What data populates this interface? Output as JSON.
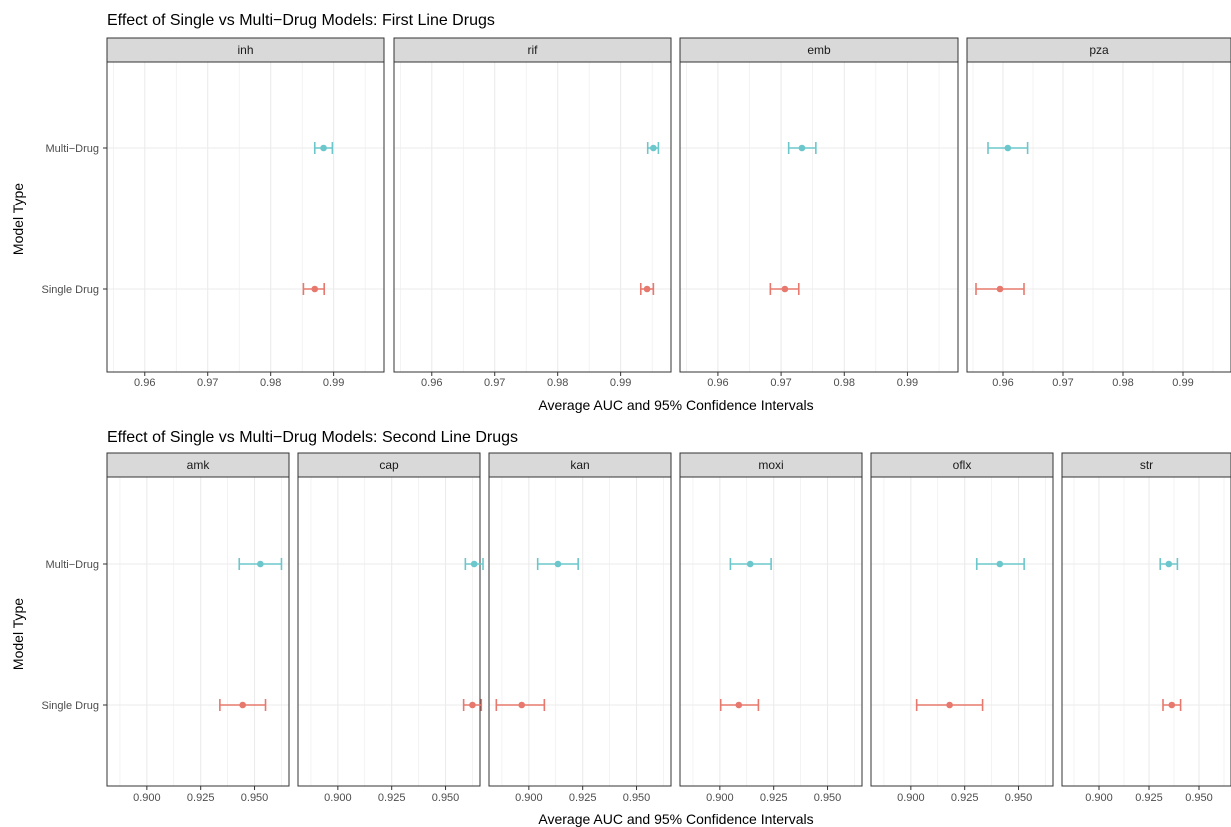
{
  "colors": {
    "multi": "#6cc7cc",
    "single": "#e7786d",
    "strip_bg": "#d9d9d9",
    "grid": "#ebebeb"
  },
  "chart_data": [
    {
      "type": "scatter",
      "subtype": "point-with-error-bars",
      "title": "Effect of Single vs Multi−Drug Models: First Line Drugs",
      "xlabel": "Average AUC and 95% Confidence Intervals",
      "ylabel": "Model Type",
      "y_categories": [
        "Multi−Drug",
        "Single Drug"
      ],
      "xlim": [
        0.954,
        0.998
      ],
      "x_ticks": [
        0.96,
        0.97,
        0.98,
        0.99
      ],
      "x_tick_labels": [
        "0.96",
        "0.97",
        "0.98",
        "0.99"
      ],
      "grid": true,
      "panels": [
        {
          "name": "inh",
          "points": [
            {
              "category": "Multi−Drug",
              "mean": 0.9884,
              "lower": 0.987,
              "upper": 0.9898
            },
            {
              "category": "Single Drug",
              "mean": 0.987,
              "lower": 0.9852,
              "upper": 0.9885
            }
          ]
        },
        {
          "name": "rif",
          "points": [
            {
              "category": "Multi−Drug",
              "mean": 0.9952,
              "lower": 0.9943,
              "upper": 0.996
            },
            {
              "category": "Single Drug",
              "mean": 0.9942,
              "lower": 0.9932,
              "upper": 0.9952
            }
          ]
        },
        {
          "name": "emb",
          "points": [
            {
              "category": "Multi−Drug",
              "mean": 0.9733,
              "lower": 0.9712,
              "upper": 0.9755
            },
            {
              "category": "Single Drug",
              "mean": 0.9706,
              "lower": 0.9683,
              "upper": 0.9728
            }
          ]
        },
        {
          "name": "pza",
          "points": [
            {
              "category": "Multi−Drug",
              "mean": 0.9608,
              "lower": 0.9575,
              "upper": 0.9641
            },
            {
              "category": "Single Drug",
              "mean": 0.9595,
              "lower": 0.9555,
              "upper": 0.9635
            }
          ]
        }
      ]
    },
    {
      "type": "scatter",
      "subtype": "point-with-error-bars",
      "title": "Effect of Single vs Multi−Drug Models: Second Line Drugs",
      "xlabel": "Average AUC and 95% Confidence Intervals",
      "ylabel": "Model Type",
      "y_categories": [
        "Multi−Drug",
        "Single Drug"
      ],
      "xlim": [
        0.8815,
        0.966
      ],
      "x_ticks": [
        0.9,
        0.925,
        0.95
      ],
      "x_tick_labels": [
        "0.900",
        "0.925",
        "0.950"
      ],
      "grid": true,
      "panels": [
        {
          "name": "amk",
          "points": [
            {
              "category": "Multi−Drug",
              "mean": 0.9527,
              "lower": 0.9429,
              "upper": 0.9625
            },
            {
              "category": "Single Drug",
              "mean": 0.9445,
              "lower": 0.9339,
              "upper": 0.9551
            }
          ]
        },
        {
          "name": "cap",
          "points": [
            {
              "category": "Multi−Drug",
              "mean": 0.9633,
              "lower": 0.9592,
              "upper": 0.9674
            },
            {
              "category": "Single Drug",
              "mean": 0.9625,
              "lower": 0.9584,
              "upper": 0.9666
            }
          ]
        },
        {
          "name": "kan",
          "points": [
            {
              "category": "Multi−Drug",
              "mean": 0.9135,
              "lower": 0.9041,
              "upper": 0.9229
            },
            {
              "category": "Single Drug",
              "mean": 0.8967,
              "lower": 0.8849,
              "upper": 0.9072
            }
          ]
        },
        {
          "name": "moxi",
          "points": [
            {
              "category": "Multi−Drug",
              "mean": 0.9141,
              "lower": 0.9049,
              "upper": 0.9238
            },
            {
              "category": "Single Drug",
              "mean": 0.9088,
              "lower": 0.9004,
              "upper": 0.9179
            }
          ]
        },
        {
          "name": "oflx",
          "points": [
            {
              "category": "Multi−Drug",
              "mean": 0.9413,
              "lower": 0.9306,
              "upper": 0.9526
            },
            {
              "category": "Single Drug",
              "mean": 0.918,
              "lower": 0.9027,
              "upper": 0.9333
            }
          ]
        },
        {
          "name": "str",
          "points": [
            {
              "category": "Multi−Drug",
              "mean": 0.9349,
              "lower": 0.9306,
              "upper": 0.9392
            },
            {
              "category": "Single Drug",
              "mean": 0.9364,
              "lower": 0.932,
              "upper": 0.9408
            }
          ]
        }
      ]
    }
  ]
}
